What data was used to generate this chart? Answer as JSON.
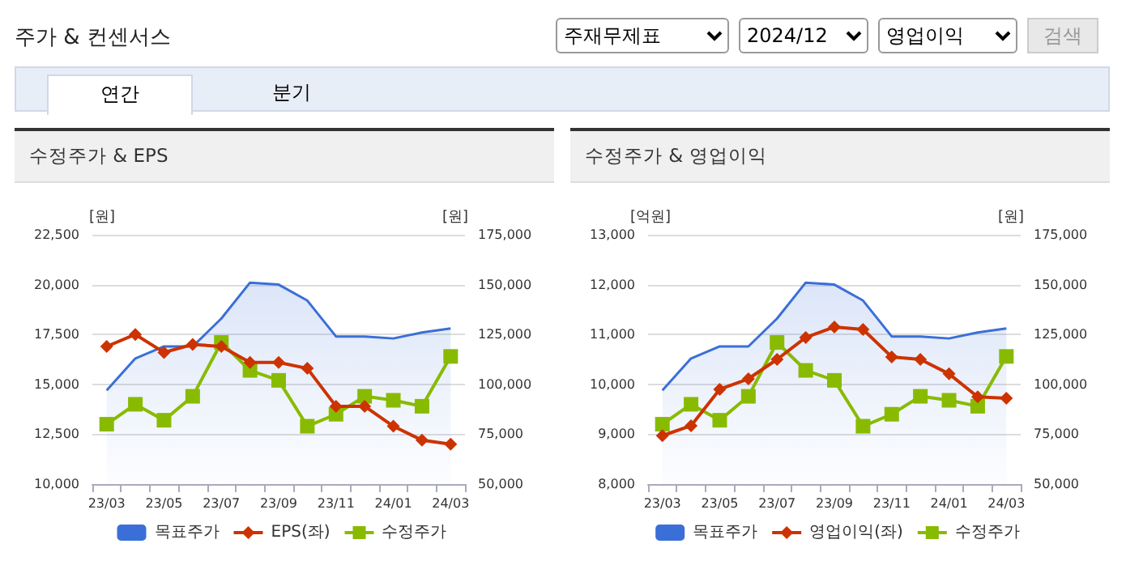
{
  "chart_data": [
    {
      "type": "line",
      "title": "수정주가 & EPS",
      "ylabel": "[원]",
      "y2label": "[원]",
      "annotations": [
        "주가 & 컨센서스",
        "주재무제표",
        "2024/12",
        "영업이익",
        "검색",
        "연간",
        "분기"
      ],
      "categories": [
        "23/03",
        null,
        "23/05",
        null,
        "23/07",
        null,
        "23/09",
        null,
        "23/11",
        null,
        "24/01",
        null,
        "24/03"
      ],
      "series": [
        {
          "name": "목표주가",
          "type": "area",
          "axis": "y2",
          "color": "#3a6fd8",
          "marker": "none",
          "values": [
            97000,
            113000,
            119000,
            119000,
            133000,
            151000,
            150000,
            142000,
            124000,
            124000,
            123000,
            126000,
            128000
          ]
        },
        {
          "name": "EPS(좌)",
          "type": "line",
          "color": "#cc3300",
          "marker": "diamond",
          "values": [
            16900,
            17500,
            16600,
            17000,
            16900,
            16100,
            16100,
            15800,
            13900,
            13900,
            12900,
            12200,
            12000
          ]
        },
        {
          "name": "수정주가",
          "type": "line",
          "axis": "y2",
          "color": "#88bb00",
          "marker": "square",
          "values": [
            80000,
            90000,
            82000,
            94000,
            121000,
            107000,
            102000,
            79000,
            85000,
            94000,
            92000,
            89000,
            114000
          ]
        }
      ],
      "ylim": [
        10000,
        22500
      ],
      "yticks": [
        {
          "value": 10000,
          "label": "10,000"
        },
        {
          "value": 12500,
          "label": "12,500"
        },
        {
          "value": 15000,
          "label": "15,000"
        },
        {
          "value": 17500,
          "label": "17,500"
        },
        {
          "value": 20000,
          "label": "20,000"
        },
        {
          "value": 22500,
          "label": "22,500"
        }
      ],
      "y2lim": [
        50000,
        175000
      ],
      "y2ticks": [
        {
          "value": 50000,
          "label": "50,000"
        },
        {
          "value": 75000,
          "label": "75,000"
        },
        {
          "value": 100000,
          "label": "100,000"
        },
        {
          "value": 125000,
          "label": "125,000"
        },
        {
          "value": 150000,
          "label": "150,000"
        },
        {
          "value": 175000,
          "label": "175,000"
        }
      ],
      "grid": "y",
      "legend": "bottom"
    },
    {
      "type": "line",
      "title": "수정주가 & 영업이익",
      "ylabel": "[억원]",
      "y2label": "[원]",
      "categories": [
        "23/03",
        null,
        "23/05",
        null,
        "23/07",
        null,
        "23/09",
        null,
        "23/11",
        null,
        "24/01",
        null,
        "24/03"
      ],
      "series": [
        {
          "name": "목표주가",
          "type": "area",
          "axis": "y2",
          "color": "#3a6fd8",
          "marker": "none",
          "values": [
            97000,
            113000,
            119000,
            119000,
            133000,
            151000,
            150000,
            142000,
            124000,
            124000,
            123000,
            126000,
            128000
          ]
        },
        {
          "name": "영업이익(좌)",
          "type": "line",
          "color": "#cc3300",
          "marker": "diamond",
          "values": [
            8970,
            9170,
            9900,
            10110,
            10500,
            10940,
            11150,
            11100,
            10550,
            10500,
            10210,
            9750,
            9720
          ]
        },
        {
          "name": "수정주가",
          "type": "line",
          "axis": "y2",
          "color": "#88bb00",
          "marker": "square",
          "values": [
            80000,
            90000,
            82000,
            94000,
            121000,
            107000,
            102000,
            79000,
            85000,
            94000,
            92000,
            89000,
            114000
          ]
        }
      ],
      "ylim": [
        8000,
        13000
      ],
      "yticks": [
        {
          "value": 8000,
          "label": "8,000"
        },
        {
          "value": 9000,
          "label": "9,000"
        },
        {
          "value": 10000,
          "label": "10,000"
        },
        {
          "value": 11000,
          "label": "11,000"
        },
        {
          "value": 12000,
          "label": "12,000"
        },
        {
          "value": 13000,
          "label": "13,000"
        }
      ],
      "y2lim": [
        50000,
        175000
      ],
      "y2ticks": [
        {
          "value": 50000,
          "label": "50,000"
        },
        {
          "value": 75000,
          "label": "75,000"
        },
        {
          "value": 100000,
          "label": "100,000"
        },
        {
          "value": 125000,
          "label": "125,000"
        },
        {
          "value": 150000,
          "label": "150,000"
        },
        {
          "value": 175000,
          "label": "175,000"
        }
      ],
      "grid": "y",
      "legend": "bottom"
    }
  ]
}
